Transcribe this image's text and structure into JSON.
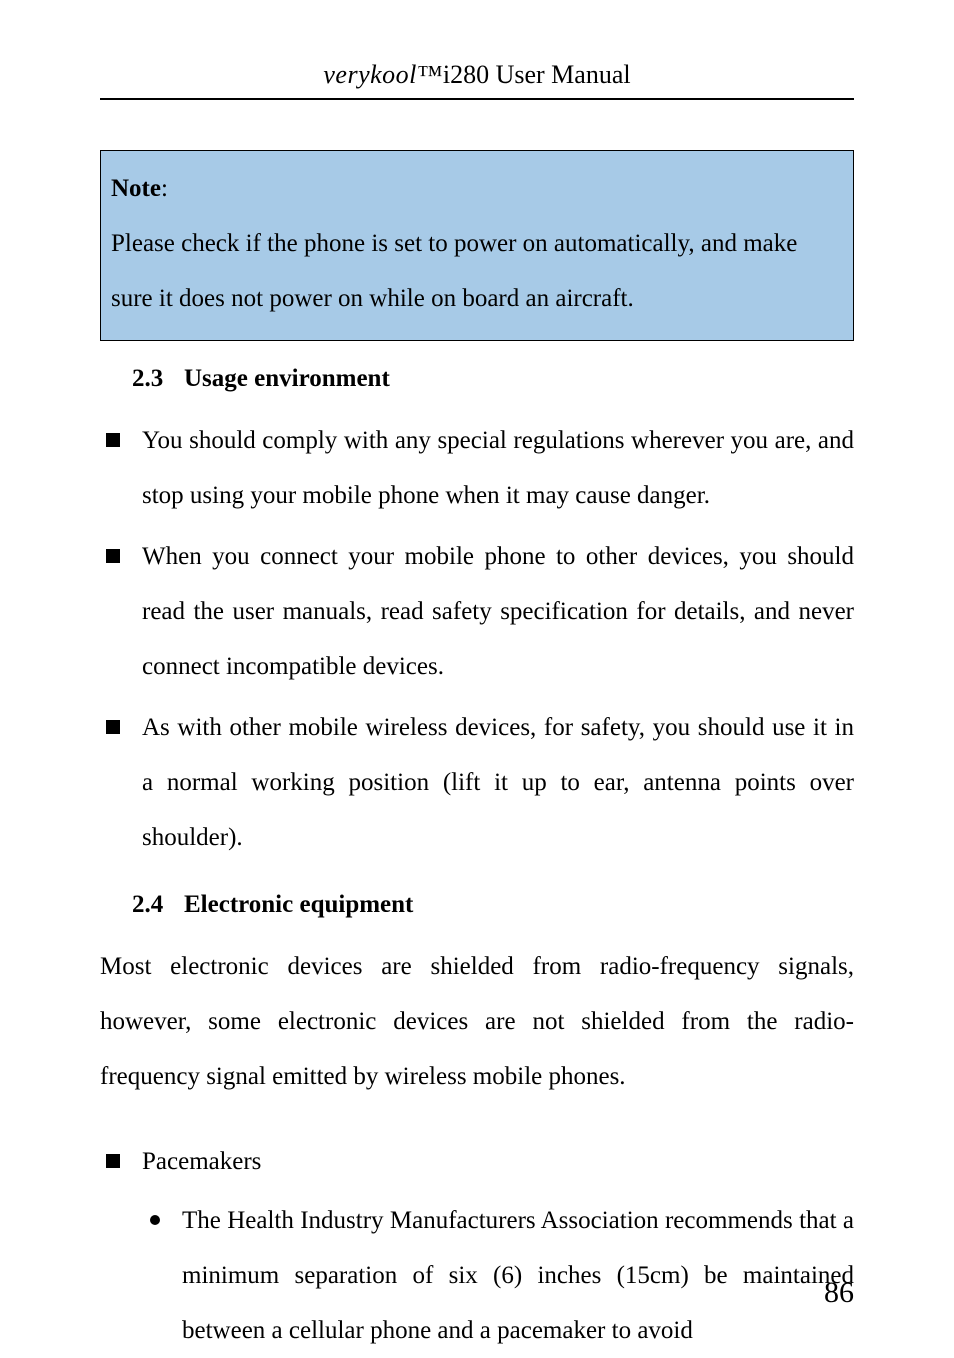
{
  "header": {
    "brand": "verykool™",
    "title_rest": "i280 User Manual"
  },
  "note": {
    "label": "Note",
    "colon": ":",
    "body": "Please check if the phone is set to power on automatically, and make sure it does not power on while on board an aircraft.",
    "background_color": "#a7cae7",
    "border_color": "#000000"
  },
  "section_23": {
    "number": "2.3",
    "title": "Usage environment",
    "items": [
      "You should comply with any special regulations wherever you are, and stop using your mobile phone when it may cause danger.",
      "When you connect your mobile phone to other devices, you should read the user manuals, read safety specification for details, and never connect incompatible devices.",
      "As with other mobile wireless devices, for safety, you should use it in a normal working position (lift it up to ear, antenna points over shoulder)."
    ]
  },
  "section_24": {
    "number": "2.4",
    "title": "Electronic equipment",
    "intro": "Most electronic devices are shielded from radio-frequency signals, however, some electronic devices are not shielded from the radio-frequency signal emitted by wireless mobile phones.",
    "subhead": "Pacemakers",
    "sub_items": [
      "The Health Industry Manufacturers Association recommends that a minimum separation of six (6) inches (15cm) be maintained between a cellular phone and a pacemaker to avoid"
    ]
  },
  "page_number": "86"
}
